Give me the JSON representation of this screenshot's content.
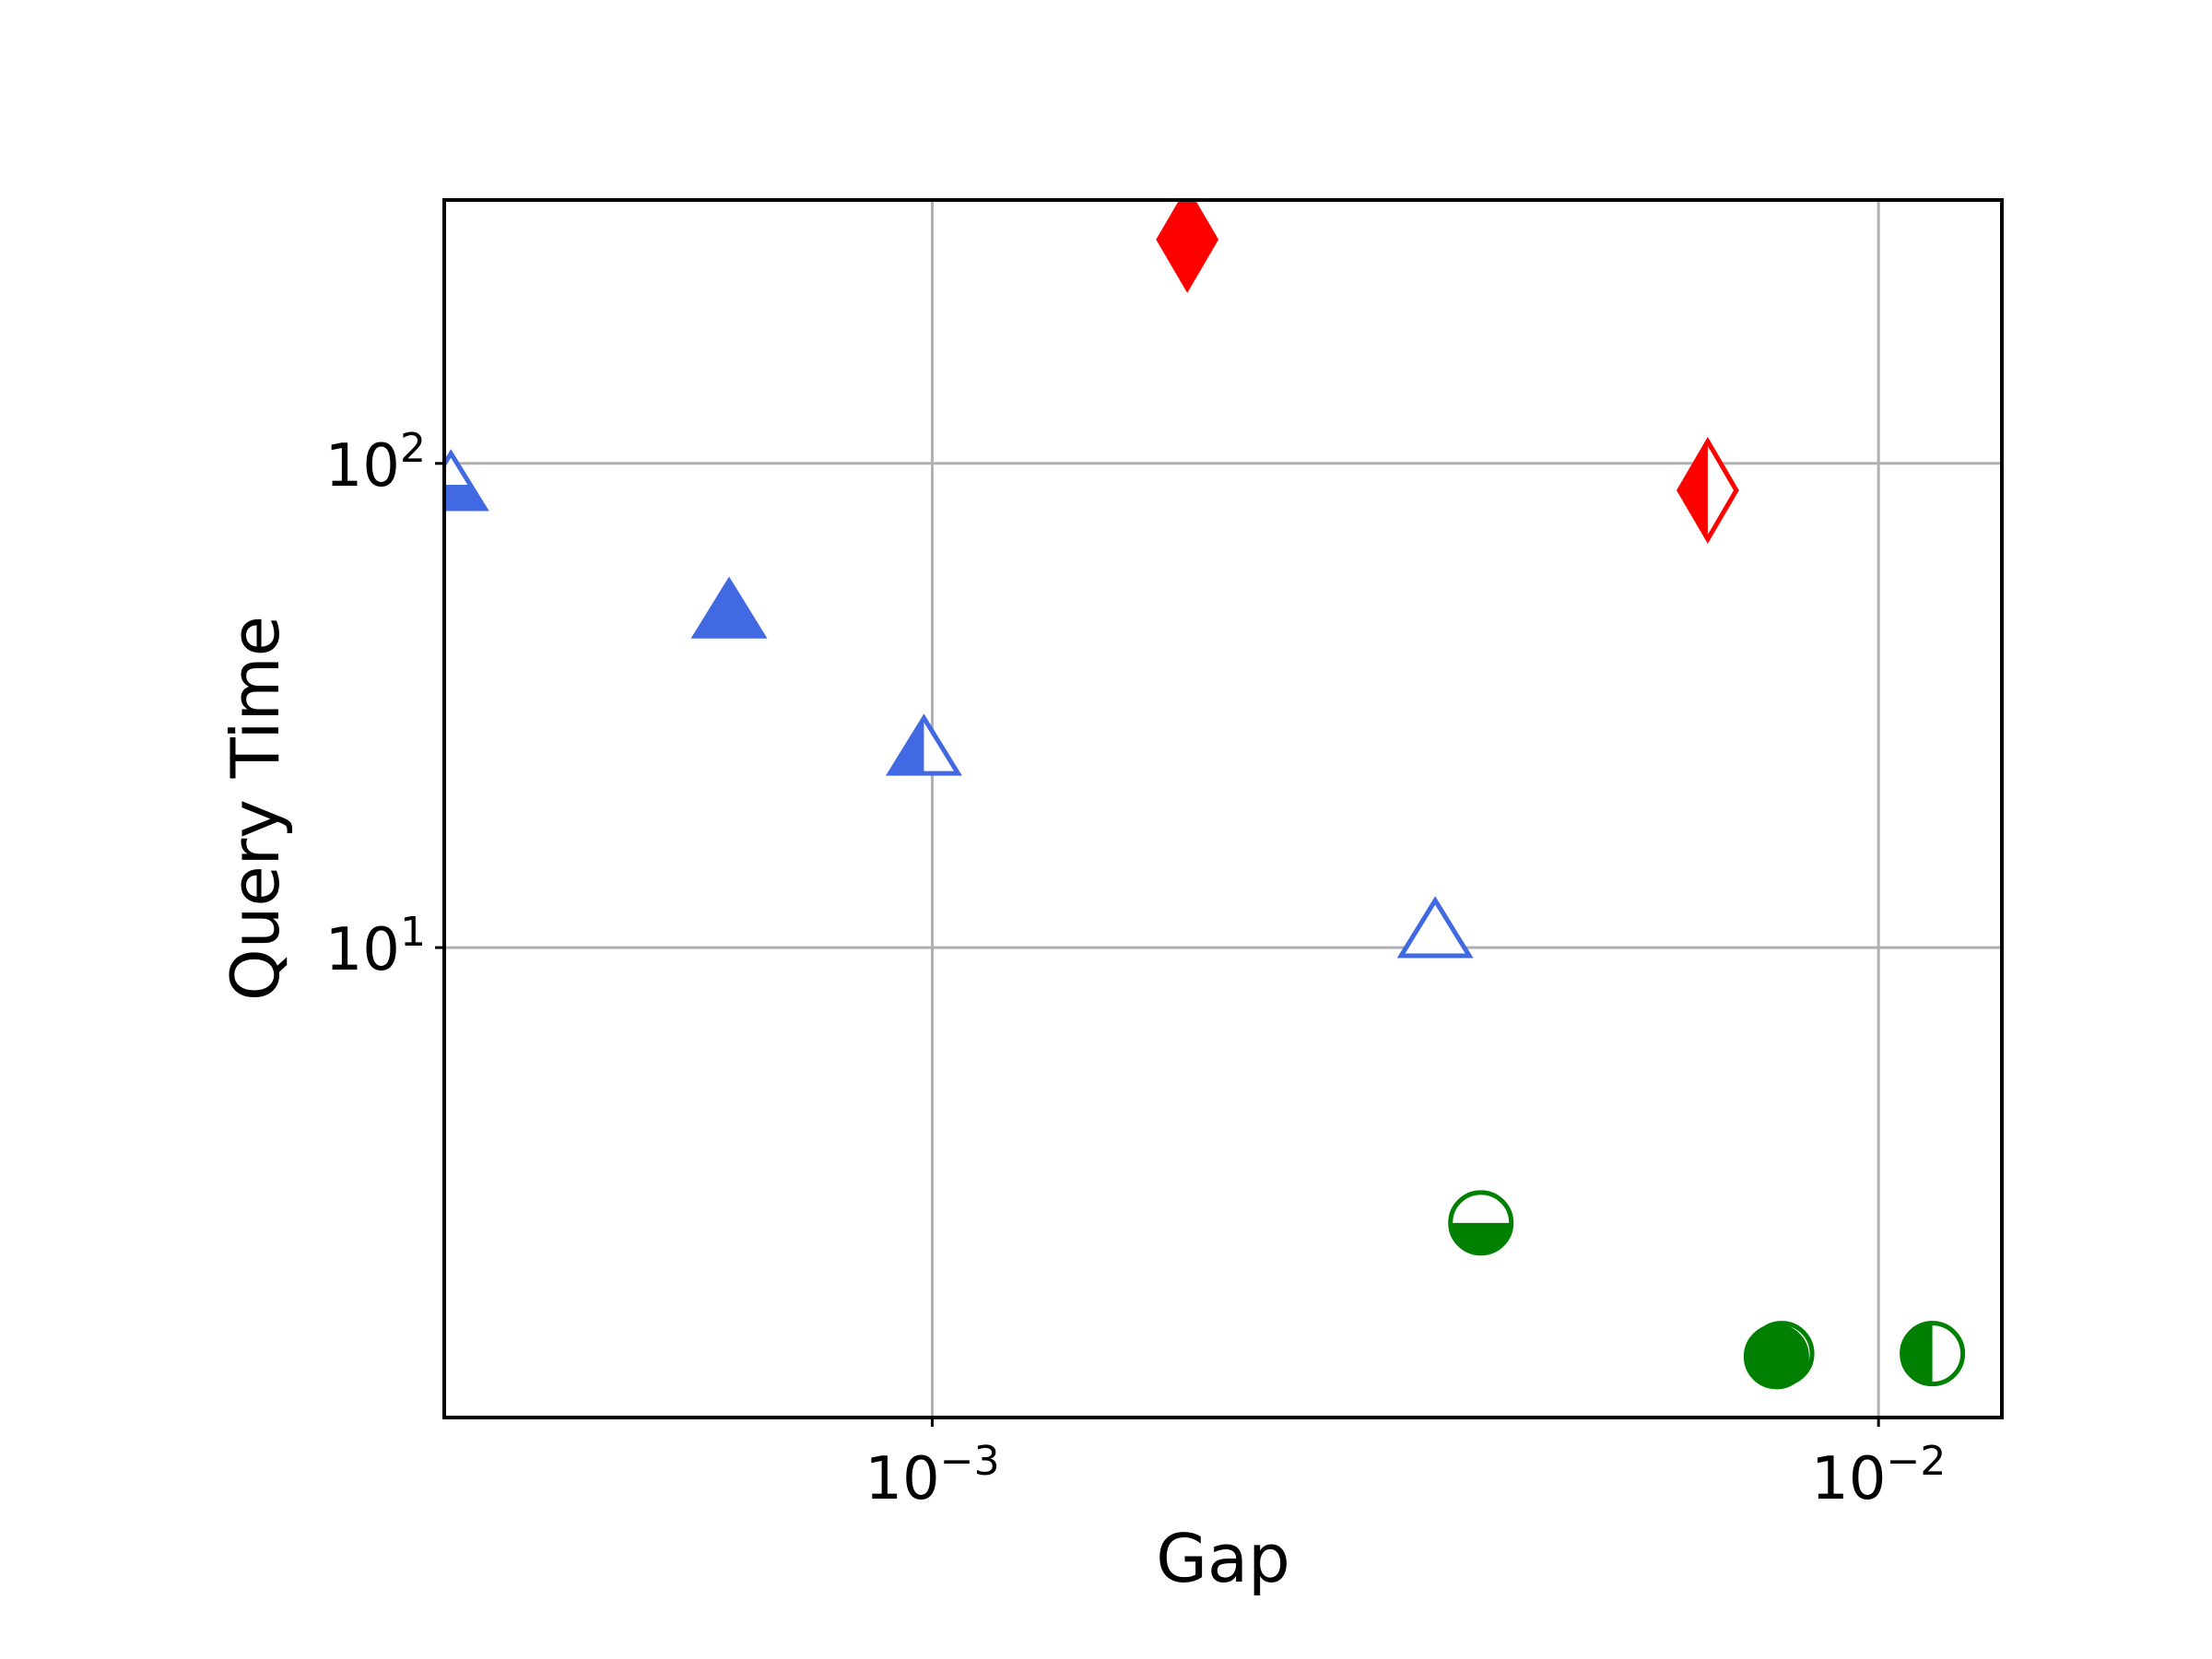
{
  "chart_data": {
    "type": "scatter",
    "xlabel": "Gap",
    "ylabel": "Query Time",
    "xscale": "log",
    "yscale": "log",
    "xlim": [
      0.000305,
      0.0135
    ],
    "ylim": [
      1.07,
      350
    ],
    "grid": true,
    "x_ticks": [
      {
        "value": 0.001,
        "base": "10",
        "exp": "−3"
      },
      {
        "value": 0.01,
        "base": "10",
        "exp": "−2"
      }
    ],
    "y_ticks": [
      {
        "value": 10,
        "base": "10",
        "exp": "1"
      },
      {
        "value": 100,
        "base": "10",
        "exp": "2"
      }
    ],
    "points": [
      {
        "x": 0.00031,
        "y": 88,
        "marker": "triangle",
        "fill": "bottom",
        "color": "#4169e1"
      },
      {
        "x": 0.00061,
        "y": 48,
        "marker": "triangle",
        "fill": "full",
        "color": "#4169e1"
      },
      {
        "x": 0.00098,
        "y": 25,
        "marker": "triangle",
        "fill": "left",
        "color": "#4169e1"
      },
      {
        "x": 0.0034,
        "y": 10.5,
        "marker": "triangle",
        "fill": "none",
        "color": "#4169e1"
      },
      {
        "x": 0.00186,
        "y": 290,
        "marker": "diamond",
        "fill": "full",
        "color": "#ff0000"
      },
      {
        "x": 0.0066,
        "y": 88,
        "marker": "diamond",
        "fill": "left",
        "color": "#ff0000"
      },
      {
        "x": 0.0038,
        "y": 2.7,
        "marker": "circle",
        "fill": "bottom",
        "color": "#008000"
      },
      {
        "x": 0.0079,
        "y": 1.45,
        "marker": "circle",
        "fill": "none",
        "color": "#008000"
      },
      {
        "x": 0.0078,
        "y": 1.43,
        "marker": "circle",
        "fill": "full",
        "color": "#008000"
      },
      {
        "x": 0.0114,
        "y": 1.45,
        "marker": "circle",
        "fill": "left",
        "color": "#008000"
      }
    ]
  }
}
